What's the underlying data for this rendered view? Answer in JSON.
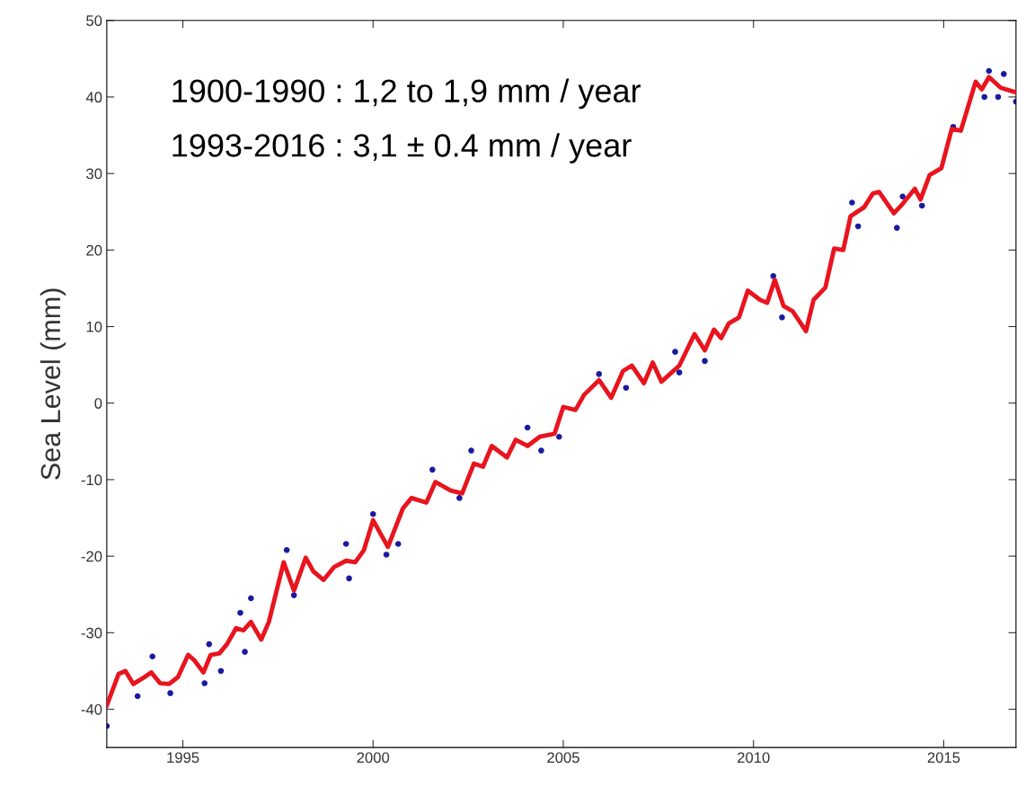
{
  "chart_data": {
    "type": "line",
    "ylabel": "Sea Level (mm)",
    "annotations": [
      "1900-1990 : 1,2 to 1,9 mm / year",
      "1993-2016 : 3,1 ± 0.4 mm / year"
    ],
    "xlim": [
      1993,
      2016.9
    ],
    "xticks": [
      1995,
      2000,
      2005,
      2010,
      2015
    ],
    "ylim": [
      -45,
      50
    ],
    "yticks": [
      -40,
      -30,
      -20,
      -10,
      0,
      10,
      20,
      30,
      40,
      50
    ],
    "grid": false,
    "legend": false,
    "series": [
      {
        "type": "scatter",
        "color": "#1a1aa0",
        "marker": "circle",
        "x": [
          1993.0,
          1993.81,
          1994.2,
          1994.67,
          1995.57,
          1995.69,
          1996.0,
          1996.51,
          1996.63,
          1996.79,
          1997.73,
          1997.92,
          1999.29,
          1999.37,
          2000.0,
          2000.35,
          2000.66,
          2001.56,
          2002.27,
          2002.58,
          2004.06,
          2004.42,
          2004.89,
          2005.94,
          2006.65,
          2007.94,
          2008.05,
          2008.72,
          2010.52,
          2010.75,
          2012.59,
          2012.75,
          2013.77,
          2013.92,
          2014.43,
          2015.25,
          2016.07,
          2016.19,
          2016.43,
          2016.58,
          2016.9
        ],
        "values": [
          -42.2,
          -38.3,
          -33.1,
          -37.9,
          -36.6,
          -31.5,
          -35.0,
          -27.4,
          -32.5,
          -25.5,
          -19.2,
          -25.1,
          -18.4,
          -22.9,
          -14.5,
          -19.8,
          -18.4,
          -8.7,
          -12.4,
          -6.2,
          -3.2,
          -6.2,
          -4.4,
          3.8,
          2.0,
          6.7,
          4.0,
          5.5,
          16.6,
          11.2,
          26.2,
          23.1,
          22.9,
          27.0,
          25.8,
          36.1,
          40.0,
          43.4,
          40.0,
          43.0,
          39.4
        ]
      },
      {
        "color": "#e8141e",
        "marker": "none",
        "line_style": "solid",
        "x": [
          1993.0,
          1993.31,
          1993.49,
          1993.7,
          1993.93,
          1994.17,
          1994.4,
          1994.64,
          1994.87,
          1995.14,
          1995.3,
          1995.54,
          1995.73,
          1995.96,
          1996.16,
          1996.4,
          1996.59,
          1996.79,
          1997.06,
          1997.26,
          1997.65,
          1997.92,
          1998.23,
          1998.43,
          1998.7,
          1998.98,
          1999.29,
          1999.53,
          1999.76,
          2000.0,
          2000.39,
          2000.78,
          2001.01,
          2001.4,
          2001.64,
          2002.03,
          2002.34,
          2002.65,
          2002.89,
          2003.12,
          2003.52,
          2003.75,
          2004.06,
          2004.38,
          2004.77,
          2005.0,
          2005.32,
          2005.55,
          2005.94,
          2006.26,
          2006.57,
          2006.8,
          2007.12,
          2007.35,
          2007.58,
          2008.05,
          2008.45,
          2008.72,
          2008.96,
          2009.15,
          2009.35,
          2009.62,
          2009.85,
          2010.17,
          2010.36,
          2010.56,
          2010.79,
          2011.03,
          2011.38,
          2011.58,
          2011.89,
          2012.12,
          2012.36,
          2012.55,
          2012.91,
          2013.14,
          2013.3,
          2013.69,
          2013.88,
          2014.24,
          2014.39,
          2014.63,
          2014.94,
          2015.21,
          2015.45,
          2015.84,
          2016.0,
          2016.19,
          2016.5,
          2016.9
        ],
        "values": [
          -39.5,
          -35.4,
          -35.0,
          -36.7,
          -36.0,
          -35.2,
          -36.6,
          -36.7,
          -35.8,
          -32.9,
          -33.6,
          -35.2,
          -32.9,
          -32.7,
          -31.5,
          -29.4,
          -29.7,
          -28.6,
          -30.9,
          -28.6,
          -20.8,
          -24.5,
          -20.2,
          -22.0,
          -23.1,
          -21.4,
          -20.6,
          -20.8,
          -19.2,
          -15.3,
          -18.8,
          -13.8,
          -12.4,
          -13.0,
          -10.3,
          -11.4,
          -11.8,
          -7.9,
          -8.3,
          -5.6,
          -7.1,
          -4.8,
          -5.6,
          -4.4,
          -4.0,
          -0.5,
          -0.9,
          1.1,
          3.0,
          0.7,
          4.2,
          4.9,
          2.6,
          5.3,
          2.8,
          4.9,
          9.0,
          6.9,
          9.6,
          8.5,
          10.4,
          11.2,
          14.7,
          13.5,
          13.1,
          16.1,
          12.7,
          12.0,
          9.4,
          13.5,
          15.1,
          20.2,
          20.0,
          24.4,
          25.6,
          27.4,
          27.6,
          24.8,
          25.8,
          28.0,
          26.6,
          29.8,
          30.7,
          35.8,
          35.6,
          42.0,
          41.0,
          42.6,
          41.2,
          40.6
        ]
      }
    ]
  }
}
